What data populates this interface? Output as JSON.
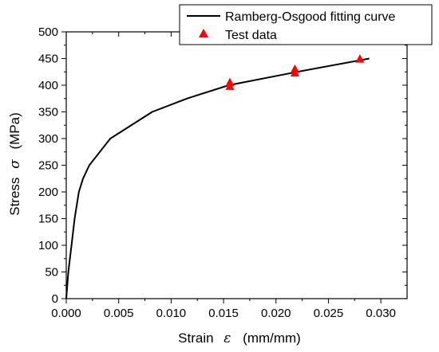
{
  "chart_data": {
    "type": "line",
    "title": "",
    "xlabel": "Strain",
    "xlabel_symbol": "ε",
    "xlabel_unit": "(mm/mm)",
    "ylabel": "Stress",
    "ylabel_symbol": "σ",
    "ylabel_unit": "(MPa)",
    "xlim": [
      0.0,
      0.0325
    ],
    "ylim": [
      0,
      500
    ],
    "x_ticks": [
      "0.000",
      "0.005",
      "0.010",
      "0.015",
      "0.020",
      "0.025",
      "0.030"
    ],
    "x_tick_values": [
      0.0,
      0.005,
      0.01,
      0.015,
      0.02,
      0.025,
      0.03
    ],
    "y_ticks": [
      "0",
      "50",
      "100",
      "150",
      "200",
      "250",
      "300",
      "350",
      "400",
      "450",
      "500"
    ],
    "y_tick_values": [
      0,
      50,
      100,
      150,
      200,
      250,
      300,
      350,
      400,
      450,
      500
    ],
    "grid": false,
    "legend_position": "top-right",
    "colors": {
      "curve": "#000000",
      "markers": "#ff0000"
    },
    "series": [
      {
        "name": "Ramberg-Osgood fitting curve",
        "kind": "line",
        "x": [
          0.0,
          0.0002,
          0.0005,
          0.0008,
          0.0012,
          0.0016,
          0.0022,
          0.0042,
          0.0082,
          0.0115,
          0.0155,
          0.022,
          0.0289
        ],
        "y": [
          0,
          50,
          100,
          150,
          200,
          225,
          250,
          300,
          350,
          375,
          400,
          425,
          450
        ]
      },
      {
        "name": "Test data",
        "kind": "scatter",
        "marker": "triangle",
        "x": [
          0.0156,
          0.0156,
          0.0218,
          0.0218,
          0.028
        ],
        "y": [
          405,
          398,
          430,
          423,
          449
        ]
      }
    ]
  }
}
